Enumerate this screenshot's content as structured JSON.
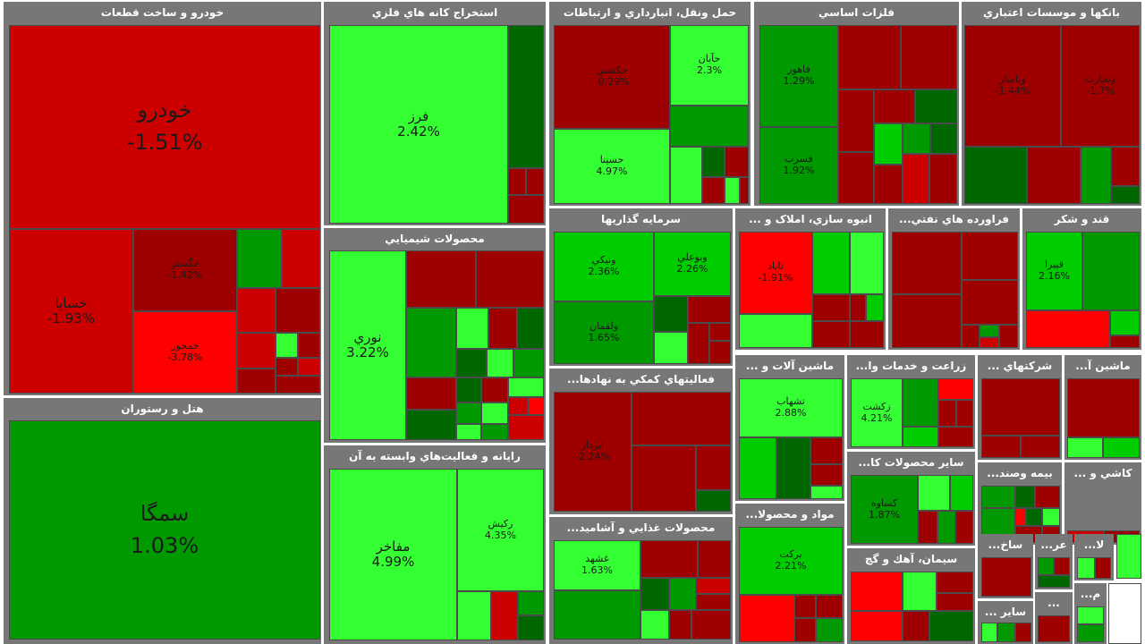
{
  "colors": {
    "strong_red": "#ff0000",
    "red": "#cc0000",
    "dark_red": "#9e0000",
    "light_green": "#33ff33",
    "green": "#00cc00",
    "dark_green": "#009900",
    "deep_green": "#006600",
    "header": "#777777"
  },
  "chart_data": {
    "type": "treemap",
    "title": "",
    "sectors": [
      {
        "id": "auto",
        "name": "خودرو و ساخت قطعات",
        "tiles": [
          {
            "symbol": "خودرو",
            "change": "-1.51%"
          },
          {
            "symbol": "خساپا",
            "change": "-1.93%"
          },
          {
            "symbol": "خگستر",
            "change": "-1.42%"
          },
          {
            "symbol": "خمحور",
            "change": "-3.78%"
          }
        ]
      },
      {
        "id": "hotel",
        "name": "هتل و رستوران",
        "tiles": [
          {
            "symbol": "سمگا",
            "change": "1.03%"
          }
        ]
      },
      {
        "id": "metal_ore",
        "name": "استخراج کانه هاي فلزي",
        "tiles": [
          {
            "symbol": "فرز",
            "change": "2.42%"
          }
        ]
      },
      {
        "id": "chem",
        "name": "محصولات شيميايي",
        "tiles": [
          {
            "symbol": "نوري",
            "change": "3.22%"
          }
        ]
      },
      {
        "id": "it",
        "name": "رايانه و فعاليت‌هاي وابسته به آن",
        "tiles": [
          {
            "symbol": "مفاخر",
            "change": "4.99%"
          },
          {
            "symbol": "رکيش",
            "change": "4.35%"
          }
        ]
      },
      {
        "id": "transport",
        "name": "حمل ونقل، انبارداري و ارتباطات",
        "tiles": [
          {
            "symbol": "حکشتي",
            "change": "-0.29%"
          },
          {
            "symbol": "حآبان",
            "change": "2.3%"
          },
          {
            "symbol": "حسينا",
            "change": "4.97%"
          }
        ]
      },
      {
        "id": "basic_metals",
        "name": "فلزات اساسي",
        "tiles": [
          {
            "symbol": "فاهور",
            "change": "1.29%"
          },
          {
            "symbol": "فسرب",
            "change": "1.92%"
          }
        ]
      },
      {
        "id": "banks",
        "name": "بانکها و موسسات اعتباري",
        "tiles": [
          {
            "symbol": "وپاسار",
            "change": "-1.44%"
          },
          {
            "symbol": "وتجارت",
            "change": "-1.7%"
          }
        ]
      },
      {
        "id": "invest",
        "name": "سرمايه گذاريها",
        "tiles": [
          {
            "symbol": "ونيکي",
            "change": "2.36%"
          },
          {
            "symbol": "وبوعلي",
            "change": "2.26%"
          },
          {
            "symbol": "ولقمان",
            "change": "1.65%"
          }
        ]
      },
      {
        "id": "mass_housing",
        "name": "انبوه سازي، املاک و ...",
        "tiles": [
          {
            "symbol": "ثاباد",
            "change": "-1.91%"
          }
        ]
      },
      {
        "id": "petroleum",
        "name": "فراورده هاي نفتي...",
        "tiles": []
      },
      {
        "id": "sugar",
        "name": "قند و شکر",
        "tiles": [
          {
            "symbol": "قپيرا",
            "change": "2.16%"
          }
        ]
      },
      {
        "id": "support",
        "name": "فعاليتهاي کمکي به نهادها...",
        "tiles": [
          {
            "symbol": "اپرداز",
            "change": "-2.24%"
          }
        ]
      },
      {
        "id": "food",
        "name": "محصولات غذايي و آشاميد...",
        "tiles": [
          {
            "symbol": "غشهد",
            "change": "1.63%"
          }
        ]
      },
      {
        "id": "machinery",
        "name": "ماشين آلات و ...",
        "tiles": [
          {
            "symbol": "تشهاب",
            "change": "2.88%"
          }
        ]
      },
      {
        "id": "agri",
        "name": "زراعت و خدمات وا...",
        "tiles": [
          {
            "symbol": "زکشت",
            "change": "4.21%"
          }
        ]
      },
      {
        "id": "other_products",
        "name": "ساير محصولات کا...",
        "tiles": [
          {
            "symbol": "کساوه",
            "change": "1.87%"
          }
        ]
      },
      {
        "id": "pharma",
        "name": "مواد و محصولا...",
        "tiles": [
          {
            "symbol": "برکت",
            "change": "2.21%"
          }
        ]
      },
      {
        "id": "cement",
        "name": "سيمان، آهك و گچ",
        "tiles": []
      },
      {
        "id": "multi",
        "name": "شرکتهاي ...",
        "tiles": []
      },
      {
        "id": "electric",
        "name": "ماشين آ...",
        "tiles": []
      },
      {
        "id": "insurance",
        "name": "بيمه وصند...",
        "tiles": []
      },
      {
        "id": "tiles",
        "name": "کاشي و ...",
        "tiles": []
      },
      {
        "id": "construction",
        "name": "ساخ...",
        "tiles": []
      },
      {
        "id": "retail",
        "name": "عر...",
        "tiles": []
      },
      {
        "id": "textile",
        "name": "لا...",
        "tiles": []
      },
      {
        "id": "other",
        "name": "ساير ...",
        "tiles": []
      },
      {
        "id": "small_a",
        "name": "...",
        "tiles": []
      },
      {
        "id": "small_m",
        "name": "م...",
        "tiles": []
      }
    ]
  }
}
